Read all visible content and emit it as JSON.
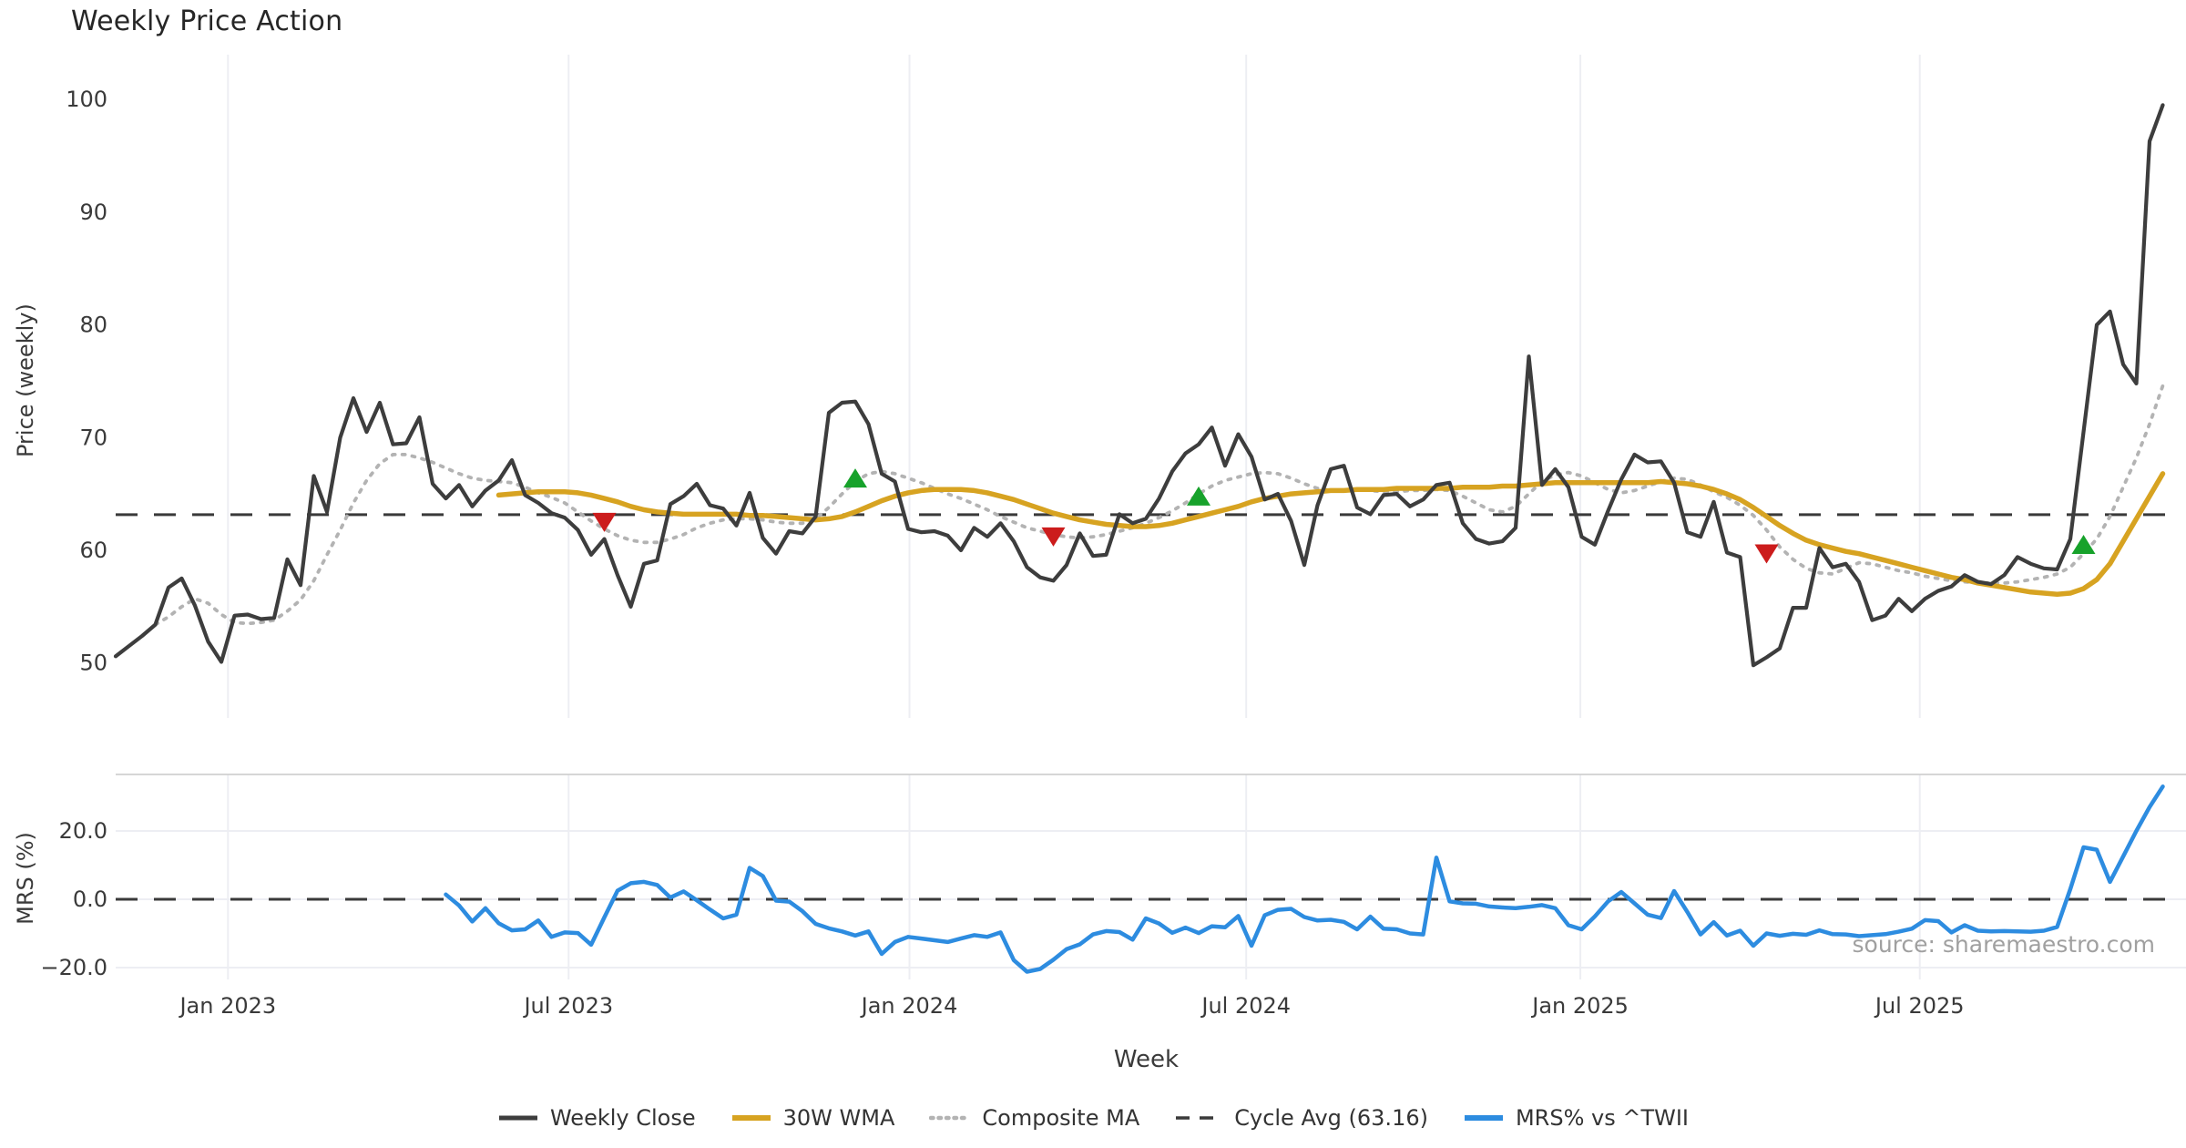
{
  "title": "Weekly Price Action",
  "source_note": "source: sharemaestro.com",
  "colors": {
    "close": "#3d3d3d",
    "wma": "#d7a321",
    "composite": "#b3b3b3",
    "cycle": "#3a3a3a",
    "mrs": "#2d8ce0",
    "buy": "#17a22b",
    "sell": "#cc1c1c",
    "grid": "#edeef3",
    "panel_border": "#c9c9c9",
    "tick_text": "#3a3a3a"
  },
  "legend": [
    {
      "label": "Weekly Close",
      "swatch": "close"
    },
    {
      "label": "30W WMA",
      "swatch": "wma"
    },
    {
      "label": "Composite MA",
      "swatch": "composite"
    },
    {
      "label": "Cycle Avg (63.16)",
      "swatch": "cycle"
    },
    {
      "label": "MRS% vs ^TWII",
      "swatch": "mrs"
    }
  ],
  "chart_data": {
    "type": "line",
    "title": "Weekly Price Action",
    "xlabel": "Week",
    "x_ticks": [
      {
        "label": "Jan 2023",
        "week": 8.5
      },
      {
        "label": "Jul 2023",
        "week": 34.3
      },
      {
        "label": "Jan 2024",
        "week": 60.1
      },
      {
        "label": "Jul 2024",
        "week": 85.6
      },
      {
        "label": "Jan 2025",
        "week": 110.9
      },
      {
        "label": "Jul 2025",
        "week": 136.6
      }
    ],
    "panels": [
      {
        "ylabel": "Price (weekly)",
        "ylim": [
          46,
          104
        ],
        "yticks": [
          {
            "v": 50,
            "label": "50"
          },
          {
            "v": 60,
            "label": "60"
          },
          {
            "v": 70,
            "label": "70"
          },
          {
            "v": 80,
            "label": "80"
          },
          {
            "v": 90,
            "label": "90"
          },
          {
            "v": 100,
            "label": "100"
          }
        ],
        "cycle_avg": 63.16
      },
      {
        "ylabel": "MRS (%)",
        "ylim": [
          -23.5,
          36.5
        ],
        "yticks": [
          {
            "v": -20,
            "label": "−20.0"
          },
          {
            "v": 0,
            "label": "0.0"
          },
          {
            "v": 20,
            "label": "20.0"
          }
        ],
        "zero_line": 0
      }
    ],
    "series": {
      "weekly_close": {
        "name": "Weekly Close",
        "start_week": 0,
        "values": [
          50.6,
          51.5,
          52.4,
          53.4,
          56.7,
          57.5,
          55.1,
          51.9,
          50.1,
          54.2,
          54.3,
          53.9,
          54.0,
          59.2,
          56.9,
          66.6,
          63.4,
          70.0,
          73.5,
          70.5,
          73.1,
          69.4,
          69.5,
          71.8,
          65.9,
          64.6,
          65.8,
          63.9,
          65.3,
          66.2,
          68.0,
          64.9,
          64.2,
          63.3,
          62.9,
          61.8,
          59.6,
          61.0,
          57.8,
          55.0,
          58.8,
          59.1,
          64.1,
          64.8,
          65.9,
          64.0,
          63.7,
          62.2,
          65.1,
          61.1,
          59.7,
          61.7,
          61.5,
          63.0,
          72.2,
          73.1,
          73.2,
          71.2,
          66.8,
          66.1,
          61.9,
          61.6,
          61.7,
          61.3,
          60.0,
          62.0,
          61.2,
          62.4,
          60.8,
          58.5,
          57.6,
          57.3,
          58.7,
          61.5,
          59.5,
          59.6,
          63.2,
          62.4,
          62.8,
          64.6,
          67.0,
          68.6,
          69.4,
          70.9,
          67.5,
          70.3,
          68.3,
          64.5,
          65.0,
          62.6,
          58.7,
          64.0,
          67.2,
          67.5,
          63.8,
          63.2,
          64.9,
          65.0,
          63.9,
          64.5,
          65.8,
          66.0,
          62.4,
          61.0,
          60.6,
          60.8,
          62.0,
          77.2,
          65.8,
          67.2,
          65.6,
          61.2,
          60.5,
          63.5,
          66.3,
          68.5,
          67.8,
          67.9,
          66.0,
          61.6,
          61.2,
          64.3,
          59.8,
          59.4,
          49.8,
          50.5,
          51.3,
          54.9,
          54.9,
          60.2,
          58.5,
          58.8,
          57.2,
          53.8,
          54.2,
          55.7,
          54.6,
          55.7,
          56.4,
          56.8,
          57.8,
          57.2,
          57.0,
          57.8,
          59.4,
          58.8,
          58.4,
          58.3,
          61.0,
          70.5,
          80.0,
          81.2,
          76.5,
          74.8,
          96.3,
          99.5
        ]
      },
      "wma30": {
        "name": "30W WMA",
        "start_week": 29,
        "values": [
          64.9,
          65.0,
          65.1,
          65.2,
          65.2,
          65.2,
          65.1,
          64.9,
          64.6,
          64.3,
          63.9,
          63.6,
          63.4,
          63.3,
          63.2,
          63.2,
          63.2,
          63.2,
          63.2,
          63.1,
          63.1,
          63.0,
          62.9,
          62.8,
          62.7,
          62.8,
          63.0,
          63.4,
          63.9,
          64.4,
          64.8,
          65.1,
          65.3,
          65.4,
          65.4,
          65.4,
          65.3,
          65.1,
          64.8,
          64.5,
          64.1,
          63.7,
          63.3,
          63.0,
          62.7,
          62.5,
          62.3,
          62.2,
          62.1,
          62.1,
          62.2,
          62.4,
          62.7,
          63.0,
          63.3,
          63.6,
          63.9,
          64.3,
          64.6,
          64.8,
          65.0,
          65.1,
          65.2,
          65.3,
          65.3,
          65.4,
          65.4,
          65.4,
          65.5,
          65.5,
          65.5,
          65.5,
          65.5,
          65.6,
          65.6,
          65.6,
          65.7,
          65.7,
          65.8,
          65.9,
          66.0,
          66.0,
          66.0,
          66.0,
          66.0,
          66.0,
          66.0,
          66.0,
          66.1,
          66.0,
          65.9,
          65.7,
          65.4,
          65.0,
          64.5,
          63.8,
          63.0,
          62.2,
          61.5,
          60.9,
          60.5,
          60.2,
          59.9,
          59.7,
          59.4,
          59.1,
          58.8,
          58.5,
          58.2,
          57.9,
          57.6,
          57.4,
          57.1,
          56.9,
          56.7,
          56.5,
          56.3,
          56.2,
          56.1,
          56.2,
          56.6,
          57.4,
          58.8,
          60.8,
          62.8,
          64.8,
          66.8
        ]
      },
      "composite_ma": {
        "name": "Composite MA",
        "start_week": 3,
        "values": [
          53.4,
          54.1,
          55.0,
          55.7,
          55.3,
          54.3,
          53.6,
          53.5,
          53.6,
          53.8,
          54.6,
          55.6,
          57.3,
          59.6,
          61.8,
          64.2,
          66.2,
          67.7,
          68.5,
          68.5,
          68.2,
          67.8,
          67.3,
          66.8,
          66.4,
          66.2,
          66.1,
          66.0,
          65.6,
          65.1,
          64.7,
          64.2,
          63.4,
          62.6,
          61.9,
          61.3,
          60.9,
          60.7,
          60.7,
          61.0,
          61.4,
          62.0,
          62.4,
          62.7,
          62.8,
          62.8,
          62.7,
          62.5,
          62.4,
          62.4,
          62.8,
          63.8,
          65.0,
          66.1,
          66.8,
          67.0,
          66.8,
          66.4,
          66.0,
          65.5,
          65.0,
          64.6,
          64.1,
          63.6,
          63.0,
          62.5,
          62.0,
          61.7,
          61.4,
          61.2,
          61.1,
          61.2,
          61.4,
          61.7,
          62.0,
          62.4,
          62.9,
          63.5,
          64.2,
          65.0,
          65.7,
          66.2,
          66.5,
          66.8,
          66.9,
          66.8,
          66.4,
          65.9,
          65.5,
          65.3,
          65.3,
          65.4,
          65.3,
          65.2,
          65.2,
          65.3,
          65.3,
          65.4,
          65.3,
          64.8,
          64.2,
          63.6,
          63.4,
          63.9,
          65.0,
          66.1,
          66.7,
          66.9,
          66.6,
          66.0,
          65.4,
          65.1,
          65.3,
          65.7,
          66.1,
          66.4,
          66.3,
          65.8,
          65.2,
          64.7,
          64.0,
          63.1,
          61.8,
          60.3,
          59.2,
          58.4,
          58.0,
          57.9,
          58.4,
          58.9,
          58.8,
          58.5,
          58.2,
          58.0,
          57.7,
          57.5,
          57.3,
          57.2,
          57.1,
          57.1,
          57.1,
          57.2,
          57.4,
          57.6,
          57.9,
          58.5,
          59.7,
          61.0,
          63.0,
          65.6,
          68.2,
          71.2,
          74.6
        ]
      },
      "mrs_pct": {
        "name": "MRS% vs ^TWII",
        "start_week": 25,
        "values": [
          1.4,
          -1.8,
          -6.5,
          -2.6,
          -7.0,
          -9.1,
          -8.8,
          -6.2,
          -11.0,
          -9.7,
          -9.9,
          -13.3,
          -5.3,
          2.5,
          4.7,
          5.1,
          4.2,
          0.5,
          2.3,
          -0.3,
          -3.0,
          -5.6,
          -4.5,
          9.2,
          6.8,
          -0.4,
          -0.7,
          -3.5,
          -7.2,
          -8.5,
          -9.4,
          -10.6,
          -9.4,
          -16.0,
          -12.5,
          -11.0,
          -11.5,
          -12.0,
          -12.5,
          -11.5,
          -10.5,
          -11.0,
          -9.7,
          -17.8,
          -21.2,
          -20.4,
          -17.7,
          -14.6,
          -13.2,
          -10.3,
          -9.3,
          -9.6,
          -11.8,
          -5.6,
          -7.1,
          -9.8,
          -8.3,
          -9.9,
          -7.9,
          -8.2,
          -4.9,
          -13.6,
          -4.7,
          -3.1,
          -2.8,
          -5.2,
          -6.2,
          -6.0,
          -6.6,
          -8.8,
          -5.1,
          -8.6,
          -8.8,
          -10.0,
          -10.3,
          12.2,
          -0.6,
          -1.2,
          -1.3,
          -2.1,
          -2.4,
          -2.6,
          -2.2,
          -1.7,
          -2.6,
          -7.6,
          -8.8,
          -5.0,
          -0.6,
          2.1,
          -1.2,
          -4.5,
          -5.5,
          2.4,
          -3.7,
          -10.3,
          -6.7,
          -10.6,
          -9.2,
          -13.6,
          -10.0,
          -10.7,
          -10.1,
          -10.4,
          -9.1,
          -10.2,
          -10.3,
          -10.8,
          -10.5,
          -10.2,
          -9.5,
          -8.6,
          -6.1,
          -6.4,
          -9.7,
          -7.6,
          -9.2,
          -9.4,
          -9.3,
          -9.4,
          -9.5,
          -9.2,
          -8.1,
          3.0,
          15.2,
          14.5,
          5.1,
          12.5,
          20.0,
          27.0,
          33.0
        ]
      }
    },
    "markers": [
      {
        "week": 37,
        "value": 62.6,
        "type": "sell"
      },
      {
        "week": 56,
        "value": 66.3,
        "type": "buy"
      },
      {
        "week": 71,
        "value": 61.3,
        "type": "sell"
      },
      {
        "week": 82,
        "value": 64.7,
        "type": "buy"
      },
      {
        "week": 125,
        "value": 59.8,
        "type": "sell"
      },
      {
        "week": 149,
        "value": 60.4,
        "type": "buy"
      }
    ]
  }
}
